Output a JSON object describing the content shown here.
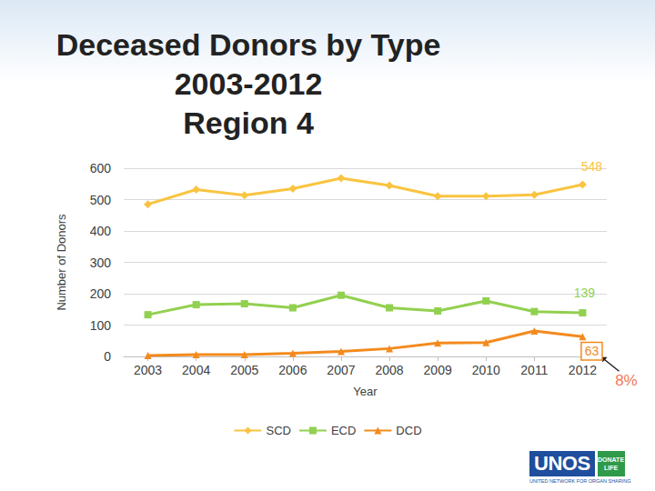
{
  "chart_data": {
    "type": "line",
    "title": "Deceased Donors by Type\n2003-2012\nRegion 4",
    "x_label": "Year",
    "y_label": "Number of Donors",
    "categories": [
      "2003",
      "2004",
      "2005",
      "2006",
      "2007",
      "2008",
      "2009",
      "2010",
      "2011",
      "2012"
    ],
    "series": [
      {
        "name": "SCD",
        "color": "#F9C440",
        "marker": "diamond",
        "values": [
          485,
          532,
          514,
          535,
          568,
          545,
          511,
          511,
          515,
          548
        ]
      },
      {
        "name": "ECD",
        "color": "#92D050",
        "marker": "square",
        "values": [
          133,
          165,
          168,
          155,
          195,
          155,
          145,
          177,
          143,
          139
        ]
      },
      {
        "name": "DCD",
        "color": "#F38A1D",
        "marker": "triangle",
        "values": [
          3,
          6,
          6,
          10,
          16,
          25,
          43,
          44,
          81,
          63
        ]
      }
    ],
    "ylim": [
      0,
      600
    ],
    "yticks": [
      0,
      100,
      200,
      300,
      400,
      500,
      600
    ],
    "grid": true,
    "legend": "bottom",
    "annotations": [
      {
        "text": "548",
        "series": "SCD",
        "x": "2012"
      },
      {
        "text": "139",
        "series": "ECD",
        "x": "2012"
      },
      {
        "text": "63",
        "series": "DCD",
        "x": "2012"
      },
      {
        "text": "8%",
        "series": "DCD",
        "x": "2012"
      }
    ]
  },
  "logo": {
    "text": "UNOS",
    "badge": "DONATE LIFE",
    "caption": "UNITED NETWORK FOR ORGAN SHARING"
  }
}
